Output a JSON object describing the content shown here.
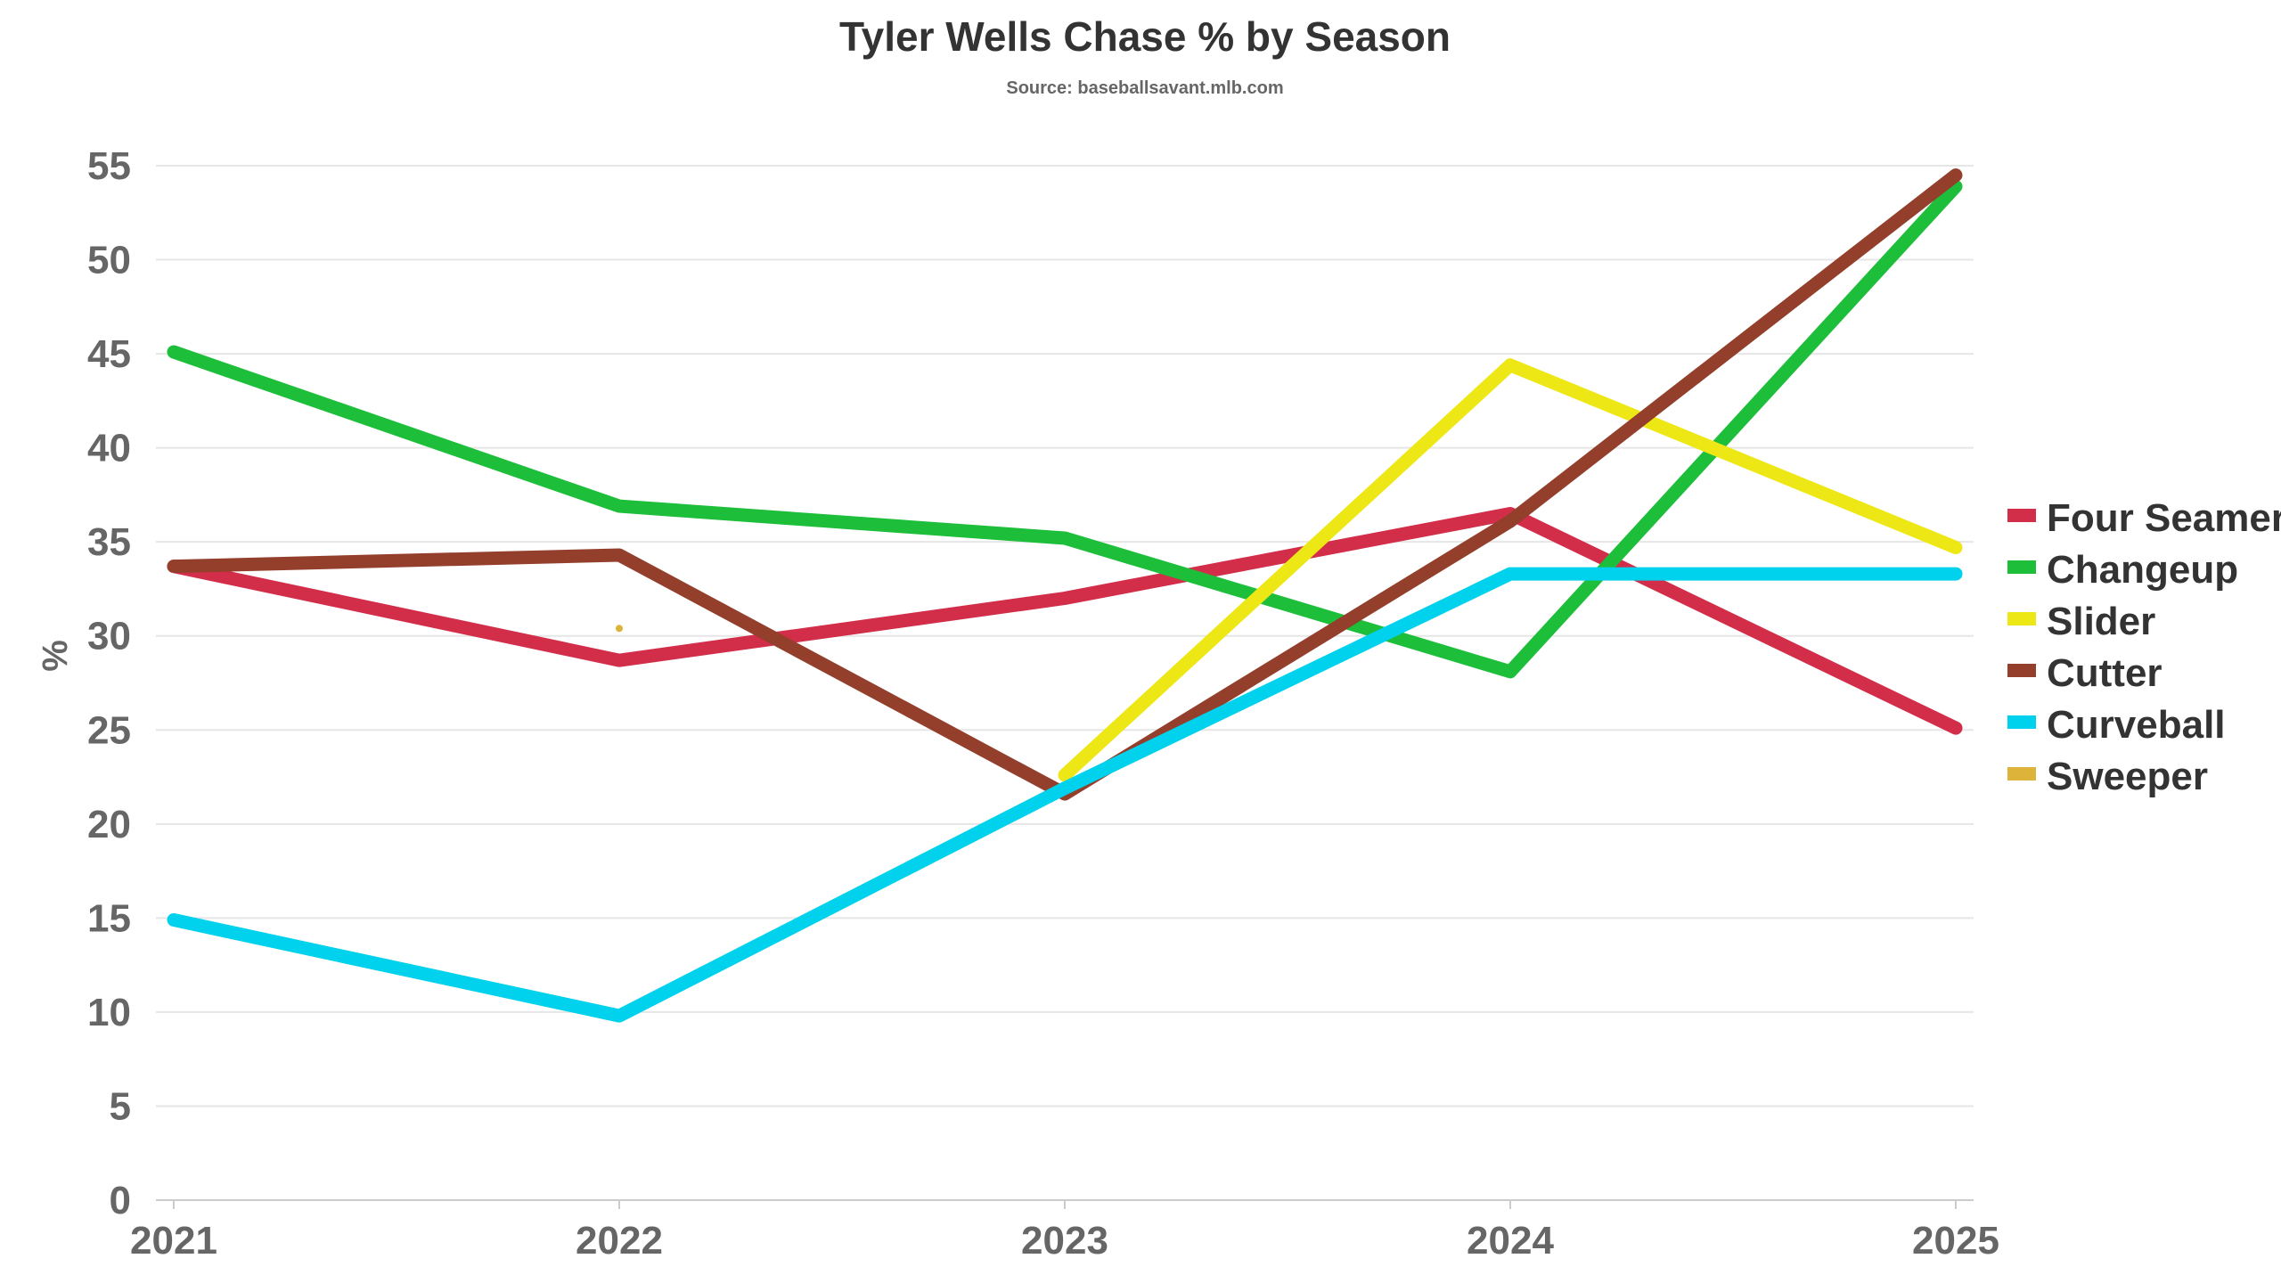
{
  "chart_data": {
    "type": "line",
    "title": "Tyler Wells Chase % by Season",
    "subtitle": "Source: baseballsavant.mlb.com",
    "xlabel": "",
    "ylabel": "%",
    "categories": [
      "2021",
      "2022",
      "2023",
      "2024",
      "2025"
    ],
    "ylim": [
      0,
      55
    ],
    "yticks": [
      "0",
      "5",
      "10",
      "15",
      "20",
      "25",
      "30",
      "35",
      "40",
      "45",
      "50",
      "55"
    ],
    "grid": true,
    "legend_position": "right",
    "series": [
      {
        "name": "Four Seamer",
        "color": "#d22d49",
        "values": [
          33.7,
          28.7,
          32.0,
          36.5,
          25.1
        ]
      },
      {
        "name": "Changeup",
        "color": "#1dbe3a",
        "values": [
          45.1,
          36.9,
          35.2,
          28.1,
          53.9
        ]
      },
      {
        "name": "Slider",
        "color": "#eee716",
        "values": [
          null,
          null,
          22.6,
          44.4,
          34.7
        ]
      },
      {
        "name": "Cutter",
        "color": "#933f2c",
        "values": [
          33.7,
          34.3,
          21.6,
          36.1,
          54.5
        ]
      },
      {
        "name": "Curveball",
        "color": "#00d1ed",
        "values": [
          14.9,
          9.8,
          21.9,
          33.3,
          33.3
        ]
      },
      {
        "name": "Sweeper",
        "color": "#ddb33a",
        "values": [
          null,
          30.4,
          null,
          null,
          null
        ]
      }
    ]
  }
}
